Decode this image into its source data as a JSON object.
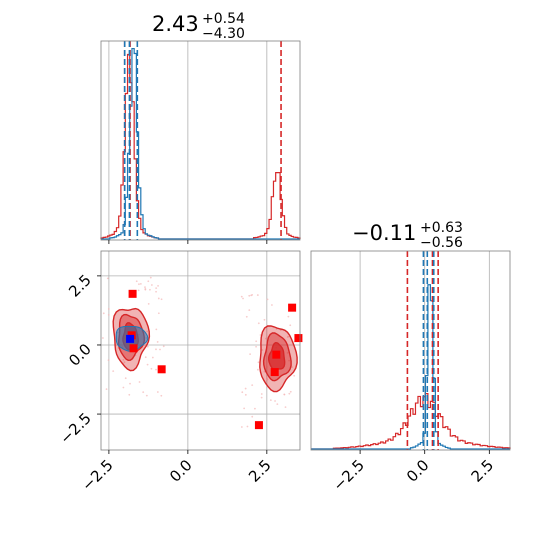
{
  "chart_data": {
    "type": "corner",
    "parameters": [
      {
        "title_value": "2.43",
        "title_plus": "+0.54",
        "title_minus": "−4.30"
      },
      {
        "title_value": "−0.11",
        "title_plus": "+0.63",
        "title_minus": "−0.56"
      }
    ],
    "axes": {
      "x0_range": [
        -2.75,
        3.55
      ],
      "x1_range": [
        -4.4,
        3.3
      ],
      "y1_range": [
        -3.8,
        3.4
      ],
      "x0_ticks": [
        "−2.5",
        "0.0",
        "2.5"
      ],
      "x0_tick_values": [
        -2.5,
        0.0,
        2.5
      ],
      "x1_ticks": [
        "−2.5",
        "0.0",
        "2.5"
      ],
      "x1_tick_values": [
        -2.5,
        0.0,
        2.5
      ],
      "y1_ticks": [
        "2.5",
        "0.0",
        "−2.5"
      ],
      "y1_tick_values": [
        2.5,
        0.0,
        -2.5
      ],
      "grid": true
    },
    "colors": {
      "red": "#d62728",
      "blue": "#1f77b4",
      "marker_red": "#ff0000",
      "marker_blue": "#0000ff"
    },
    "hist_x0": {
      "red_dashed": [
        -2.0,
        -1.83,
        2.95
      ],
      "blue_dashed": [
        -2.0,
        -1.85,
        -1.6
      ]
    },
    "hist_x1": {
      "red_dashed": [
        -0.67,
        0.3,
        0.52
      ],
      "blue_dashed": [
        -0.05,
        0.1,
        0.35
      ]
    },
    "markers_red": [
      [
        -1.75,
        1.85
      ],
      [
        -1.78,
        0.35
      ],
      [
        -1.72,
        -0.12
      ],
      [
        -0.83,
        -0.88
      ],
      [
        3.3,
        1.35
      ],
      [
        3.5,
        0.25
      ],
      [
        2.8,
        -0.35
      ],
      [
        2.75,
        -0.98
      ],
      [
        2.25,
        -2.9
      ]
    ],
    "markers_blue": [
      [
        -1.83,
        0.22
      ]
    ]
  }
}
